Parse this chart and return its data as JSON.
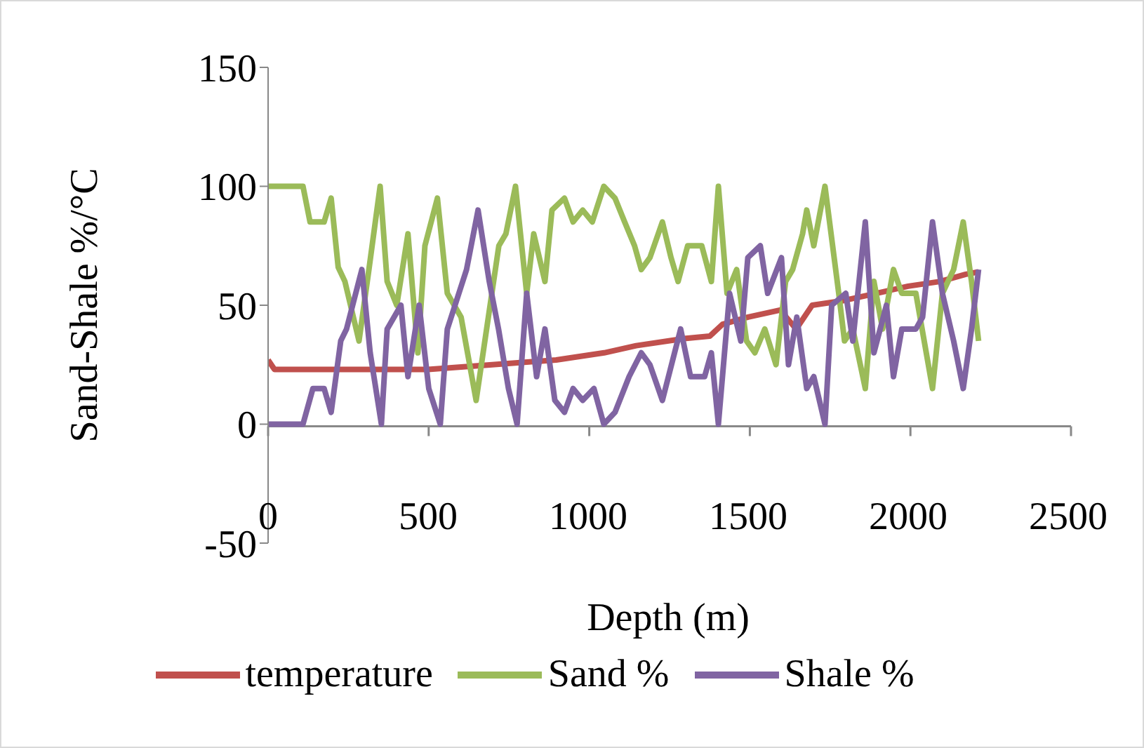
{
  "chart_data": {
    "type": "line",
    "xlabel": "Depth (m)",
    "ylabel": "Sand-Shale %/°C",
    "xlim": [
      0,
      2500
    ],
    "xticks": [
      0,
      500,
      1000,
      1500,
      2000,
      2500
    ],
    "ylim": [
      -50,
      150
    ],
    "yticks": [
      -50,
      0,
      50,
      100,
      150
    ],
    "legend": "bottom",
    "marker": "none",
    "line_style": "solid",
    "series": [
      {
        "name": "temperature",
        "color": "#c0504d",
        "x": [
          0,
          20,
          200,
          500,
          700,
          900,
          1050,
          1150,
          1300,
          1380,
          1420,
          1500,
          1600,
          1650,
          1700,
          1800,
          1900,
          2000,
          2100,
          2180,
          2220
        ],
        "values": [
          27,
          23,
          23,
          23,
          25,
          27,
          30,
          33,
          36,
          37,
          42,
          45,
          48,
          40,
          50,
          52,
          55,
          58,
          60,
          63,
          64
        ]
      },
      {
        "name": "Sand %",
        "color": "#9bbb59",
        "x": [
          0,
          109,
          131,
          175,
          197,
          219,
          240,
          284,
          315,
          350,
          372,
          402,
          437,
          468,
          490,
          529,
          560,
          603,
          650,
          721,
          743,
          773,
          808,
          830,
          865,
          887,
          926,
          953,
          983,
          1013,
          1049,
          1084,
          1114,
          1145,
          1166,
          1193,
          1232,
          1259,
          1281,
          1311,
          1355,
          1385,
          1407,
          1434,
          1464,
          1495,
          1521,
          1552,
          1587,
          1617,
          1639,
          1670,
          1683,
          1705,
          1740,
          1783,
          1801,
          1827,
          1866,
          1893,
          1920,
          1954,
          1980,
          2024,
          2076,
          2107,
          2142,
          2172,
          2198,
          2220
        ],
        "values": [
          100,
          100,
          85,
          85,
          95,
          66,
          60,
          35,
          65,
          100,
          60,
          50,
          80,
          30,
          75,
          95,
          55,
          45,
          10,
          75,
          80,
          100,
          55,
          80,
          60,
          90,
          95,
          85,
          90,
          85,
          100,
          95,
          85,
          75,
          65,
          70,
          85,
          70,
          60,
          75,
          75,
          60,
          100,
          55,
          65,
          35,
          30,
          40,
          25,
          60,
          65,
          80,
          90,
          75,
          100,
          55,
          35,
          40,
          15,
          60,
          40,
          65,
          55,
          55,
          15,
          55,
          65,
          85,
          60,
          35
        ]
      },
      {
        "name": "Shale %",
        "color": "#8064a2",
        "x": [
          0,
          109,
          140,
          175,
          197,
          227,
          245,
          293,
          319,
          354,
          372,
          415,
          437,
          472,
          502,
          538,
          560,
          620,
          656,
          691,
          720,
          751,
          778,
          808,
          839,
          865,
          896,
          926,
          953,
          983,
          1018,
          1049,
          1084,
          1128,
          1166,
          1193,
          1232,
          1289,
          1320,
          1364,
          1385,
          1407,
          1442,
          1477,
          1499,
          1538,
          1561,
          1604,
          1626,
          1652,
          1683,
          1705,
          1740,
          1761,
          1805,
          1827,
          1866,
          1893,
          1932,
          1954,
          1980,
          2024,
          2045,
          2076,
          2107,
          2142,
          2172,
          2198,
          2220
        ],
        "values": [
          0,
          0,
          15,
          15,
          5,
          35,
          40,
          65,
          30,
          0,
          40,
          50,
          20,
          50,
          15,
          0,
          40,
          65,
          90,
          60,
          40,
          15,
          0,
          55,
          20,
          40,
          10,
          5,
          15,
          10,
          15,
          0,
          5,
          20,
          30,
          25,
          10,
          40,
          20,
          20,
          30,
          0,
          55,
          35,
          70,
          75,
          55,
          70,
          25,
          45,
          15,
          20,
          0,
          50,
          55,
          35,
          85,
          30,
          50,
          20,
          40,
          40,
          45,
          85,
          55,
          35,
          15,
          40,
          65
        ]
      }
    ]
  }
}
